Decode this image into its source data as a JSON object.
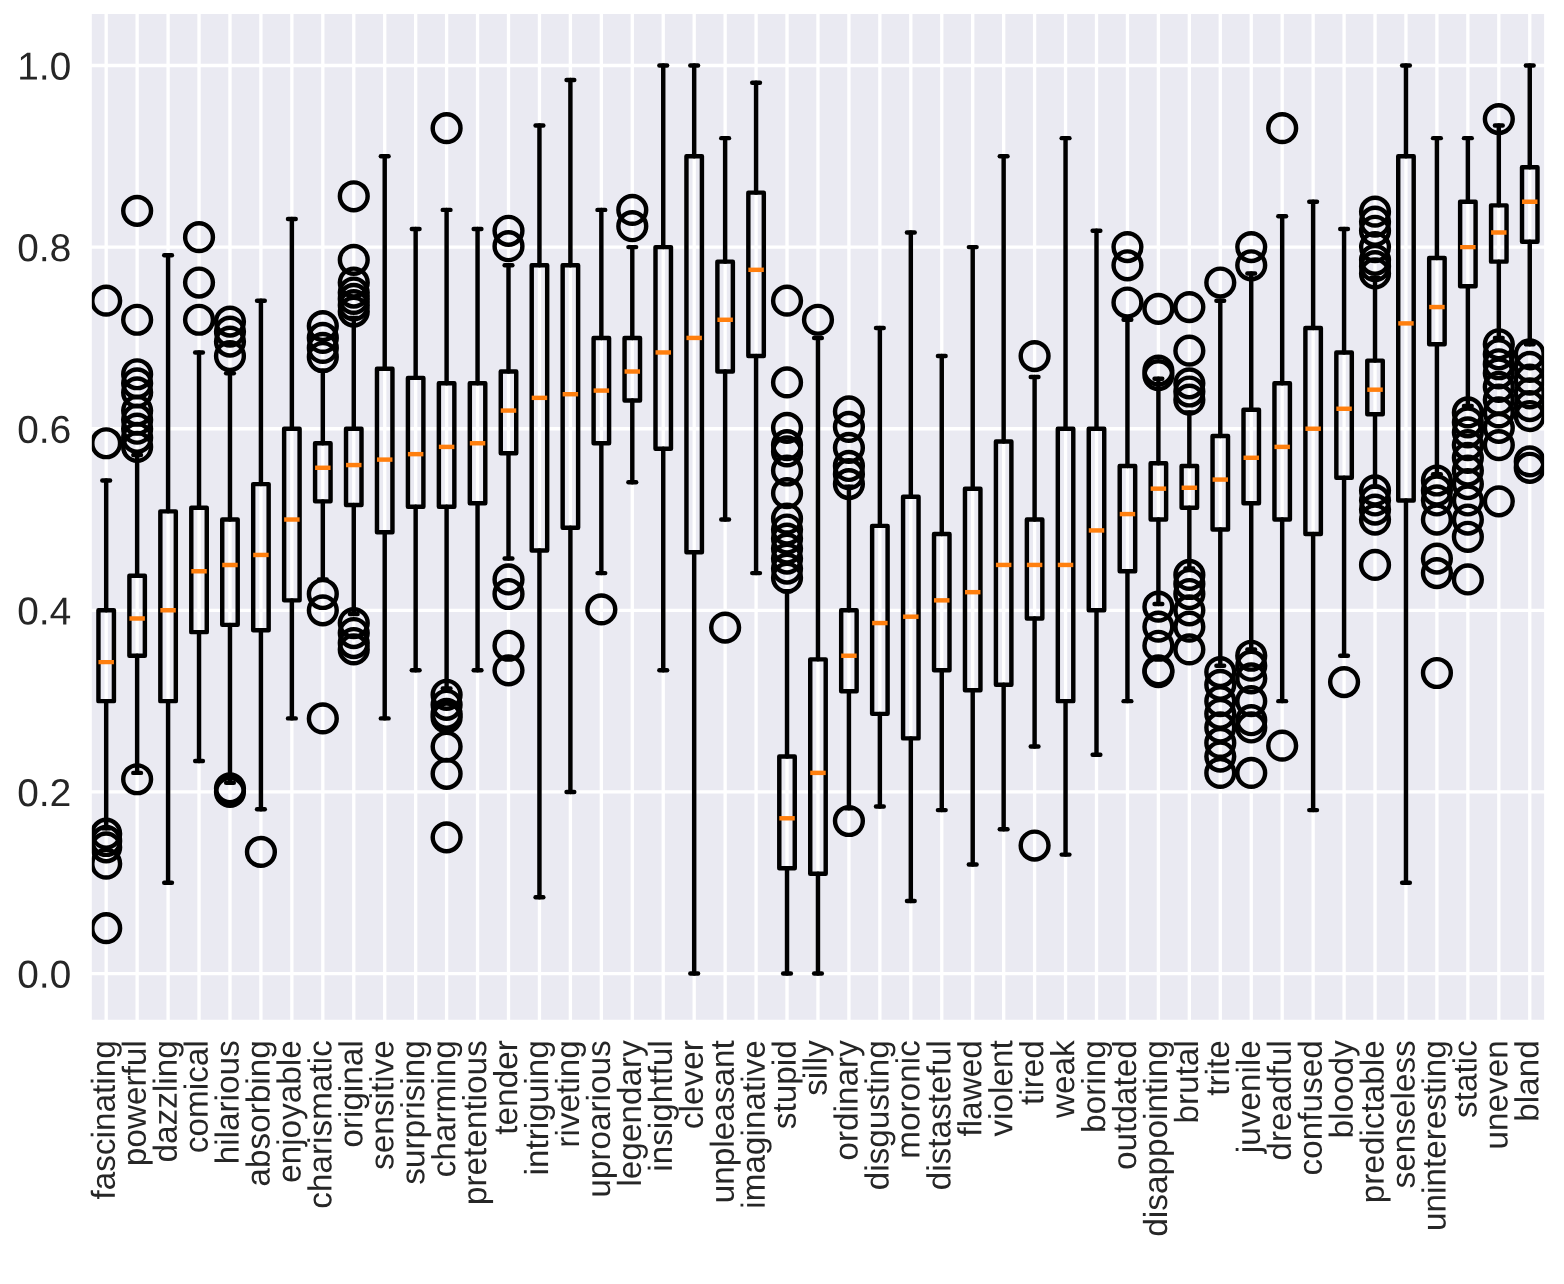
{
  "chart_data": {
    "type": "box",
    "categories": [
      "fascinating",
      "powerful",
      "dazzling",
      "comical",
      "hilarious",
      "absorbing",
      "enjoyable",
      "charismatic",
      "original",
      "sensitive",
      "surprising",
      "charming",
      "pretentious",
      "tender",
      "intriguing",
      "riveting",
      "uproarious",
      "legendary",
      "insightful",
      "clever",
      "unpleasant",
      "imaginative",
      "stupid",
      "silly",
      "ordinary",
      "disgusting",
      "moronic",
      "distasteful",
      "flawed",
      "violent",
      "tired",
      "weak",
      "boring",
      "outdated",
      "disappointing",
      "brutal",
      "trite",
      "juvenile",
      "dreadful",
      "confused",
      "bloody",
      "predictable",
      "senseless",
      "uninteresting",
      "static",
      "uneven",
      "bland"
    ],
    "boxes": [
      {
        "low": 0.16,
        "q1": 0.3,
        "median": 0.343,
        "q3": 0.4,
        "high": 0.543,
        "outliers": [
          0.154,
          0.146,
          0.139,
          0.121,
          0.05,
          0.584,
          0.741
        ]
      },
      {
        "low": 0.221,
        "q1": 0.35,
        "median": 0.391,
        "q3": 0.438,
        "high": 0.571,
        "outliers": [
          0.214,
          0.58,
          0.59,
          0.6,
          0.61,
          0.62,
          0.64,
          0.65,
          0.66,
          0.72,
          0.84
        ]
      },
      {
        "low": 0.1,
        "q1": 0.3,
        "median": 0.4,
        "q3": 0.509,
        "high": 0.791
      },
      {
        "low": 0.234,
        "q1": 0.376,
        "median": 0.443,
        "q3": 0.513,
        "high": 0.684,
        "outliers": [
          0.72,
          0.761,
          0.811
        ]
      },
      {
        "low": 0.21,
        "q1": 0.384,
        "median": 0.45,
        "q3": 0.5,
        "high": 0.661,
        "outliers": [
          0.204,
          0.2,
          0.68,
          0.696,
          0.707,
          0.718
        ]
      },
      {
        "low": 0.181,
        "q1": 0.378,
        "median": 0.461,
        "q3": 0.539,
        "high": 0.741,
        "outliers": [
          0.134
        ]
      },
      {
        "low": 0.281,
        "q1": 0.411,
        "median": 0.5,
        "q3": 0.6,
        "high": 0.831
      },
      {
        "low": 0.434,
        "q1": 0.52,
        "median": 0.557,
        "q3": 0.584,
        "high": 0.664,
        "outliers": [
          0.679,
          0.689,
          0.7,
          0.713,
          0.418,
          0.4,
          0.281
        ]
      },
      {
        "low": 0.396,
        "q1": 0.516,
        "median": 0.56,
        "q3": 0.6,
        "high": 0.722,
        "outliers": [
          0.729,
          0.736,
          0.743,
          0.75,
          0.761,
          0.786,
          0.856,
          0.386,
          0.375,
          0.364,
          0.357
        ]
      },
      {
        "low": 0.281,
        "q1": 0.486,
        "median": 0.566,
        "q3": 0.666,
        "high": 0.9
      },
      {
        "low": 0.334,
        "q1": 0.514,
        "median": 0.572,
        "q3": 0.656,
        "high": 0.82
      },
      {
        "low": 0.314,
        "q1": 0.514,
        "median": 0.58,
        "q3": 0.65,
        "high": 0.841,
        "outliers": [
          0.307,
          0.296,
          0.286,
          0.282,
          0.25,
          0.22,
          0.15,
          0.931
        ]
      },
      {
        "low": 0.334,
        "q1": 0.518,
        "median": 0.584,
        "q3": 0.65,
        "high": 0.82
      },
      {
        "low": 0.457,
        "q1": 0.573,
        "median": 0.62,
        "q3": 0.663,
        "high": 0.78,
        "outliers": [
          0.801,
          0.818,
          0.434,
          0.418,
          0.361,
          0.334
        ]
      },
      {
        "low": 0.084,
        "q1": 0.466,
        "median": 0.634,
        "q3": 0.78,
        "high": 0.934
      },
      {
        "low": 0.2,
        "q1": 0.491,
        "median": 0.638,
        "q3": 0.78,
        "high": 0.984
      },
      {
        "low": 0.441,
        "q1": 0.584,
        "median": 0.642,
        "q3": 0.7,
        "high": 0.841,
        "outliers": [
          0.401
        ]
      },
      {
        "low": 0.541,
        "q1": 0.631,
        "median": 0.663,
        "q3": 0.7,
        "high": 0.8,
        "outliers": [
          0.823,
          0.841
        ]
      },
      {
        "low": 0.334,
        "q1": 0.578,
        "median": 0.684,
        "q3": 0.8,
        "high": 1.0
      },
      {
        "low": 0.0,
        "q1": 0.464,
        "median": 0.7,
        "q3": 0.9,
        "high": 1.0
      },
      {
        "low": 0.5,
        "q1": 0.663,
        "median": 0.72,
        "q3": 0.784,
        "high": 0.92,
        "outliers": [
          0.381
        ]
      },
      {
        "low": 0.441,
        "q1": 0.68,
        "median": 0.775,
        "q3": 0.86,
        "high": 0.981
      },
      {
        "low": 0.0,
        "q1": 0.116,
        "median": 0.171,
        "q3": 0.239,
        "high": 0.421,
        "outliers": [
          0.436,
          0.446,
          0.457,
          0.468,
          0.479,
          0.489,
          0.501,
          0.529,
          0.554,
          0.575,
          0.582,
          0.601,
          0.651,
          0.741
        ]
      },
      {
        "low": 0.0,
        "q1": 0.11,
        "median": 0.221,
        "q3": 0.346,
        "high": 0.7,
        "outliers": [
          0.72
        ]
      },
      {
        "low": 0.182,
        "q1": 0.311,
        "median": 0.35,
        "q3": 0.4,
        "high": 0.536,
        "outliers": [
          0.168,
          0.539,
          0.55,
          0.559,
          0.579,
          0.602,
          0.619
        ]
      },
      {
        "low": 0.184,
        "q1": 0.286,
        "median": 0.386,
        "q3": 0.493,
        "high": 0.711
      },
      {
        "low": 0.08,
        "q1": 0.259,
        "median": 0.393,
        "q3": 0.525,
        "high": 0.816
      },
      {
        "low": 0.18,
        "q1": 0.334,
        "median": 0.411,
        "q3": 0.484,
        "high": 0.68
      },
      {
        "low": 0.12,
        "q1": 0.312,
        "median": 0.42,
        "q3": 0.534,
        "high": 0.8
      },
      {
        "low": 0.159,
        "q1": 0.318,
        "median": 0.45,
        "q3": 0.586,
        "high": 0.9
      },
      {
        "low": 0.25,
        "q1": 0.391,
        "median": 0.45,
        "q3": 0.5,
        "high": 0.657,
        "outliers": [
          0.68,
          0.141
        ]
      },
      {
        "low": 0.131,
        "q1": 0.3,
        "median": 0.45,
        "q3": 0.6,
        "high": 0.92
      },
      {
        "low": 0.241,
        "q1": 0.4,
        "median": 0.488,
        "q3": 0.6,
        "high": 0.818
      },
      {
        "low": 0.3,
        "q1": 0.443,
        "median": 0.506,
        "q3": 0.559,
        "high": 0.72,
        "outliers": [
          0.739,
          0.78,
          0.8
        ]
      },
      {
        "low": 0.407,
        "q1": 0.5,
        "median": 0.534,
        "q3": 0.562,
        "high": 0.655,
        "outliers": [
          0.659,
          0.664,
          0.732,
          0.404,
          0.382,
          0.361,
          0.334,
          0.332
        ]
      },
      {
        "low": 0.446,
        "q1": 0.513,
        "median": 0.535,
        "q3": 0.559,
        "high": 0.618,
        "outliers": [
          0.632,
          0.641,
          0.65,
          0.686,
          0.734,
          0.439,
          0.429,
          0.418,
          0.4,
          0.382,
          0.357
        ]
      },
      {
        "low": 0.339,
        "q1": 0.489,
        "median": 0.544,
        "q3": 0.592,
        "high": 0.741,
        "outliers": [
          0.332,
          0.318,
          0.3,
          0.286,
          0.271,
          0.254,
          0.239,
          0.221,
          0.761
        ]
      },
      {
        "low": 0.357,
        "q1": 0.518,
        "median": 0.568,
        "q3": 0.621,
        "high": 0.771,
        "outliers": [
          0.35,
          0.339,
          0.325,
          0.3,
          0.279,
          0.271,
          0.221,
          0.78,
          0.8
        ]
      },
      {
        "low": 0.3,
        "q1": 0.5,
        "median": 0.58,
        "q3": 0.65,
        "high": 0.834,
        "outliers": [
          0.251,
          0.931
        ]
      },
      {
        "low": 0.18,
        "q1": 0.484,
        "median": 0.6,
        "q3": 0.711,
        "high": 0.85
      },
      {
        "low": 0.35,
        "q1": 0.546,
        "median": 0.622,
        "q3": 0.684,
        "high": 0.82,
        "outliers": [
          0.321
        ]
      },
      {
        "low": 0.536,
        "q1": 0.616,
        "median": 0.643,
        "q3": 0.675,
        "high": 0.766,
        "outliers": [
          0.839,
          0.828,
          0.818,
          0.8,
          0.786,
          0.779,
          0.771,
          0.532,
          0.521,
          0.511,
          0.5,
          0.45
        ]
      },
      {
        "low": 0.1,
        "q1": 0.521,
        "median": 0.716,
        "q3": 0.9,
        "high": 1.0
      },
      {
        "low": 0.55,
        "q1": 0.693,
        "median": 0.734,
        "q3": 0.788,
        "high": 0.92,
        "outliers": [
          0.543,
          0.532,
          0.521,
          0.5,
          0.457,
          0.441,
          0.331
        ]
      },
      {
        "low": 0.625,
        "q1": 0.757,
        "median": 0.8,
        "q3": 0.85,
        "high": 0.92,
        "outliers": [
          0.618,
          0.607,
          0.596,
          0.582,
          0.568,
          0.554,
          0.539,
          0.521,
          0.5,
          0.481,
          0.434
        ]
      },
      {
        "low": 0.7,
        "q1": 0.784,
        "median": 0.816,
        "q3": 0.846,
        "high": 0.934,
        "outliers": [
          0.693,
          0.682,
          0.671,
          0.661,
          0.646,
          0.632,
          0.618,
          0.601,
          0.582,
          0.52,
          0.941
        ]
      },
      {
        "low": 0.693,
        "q1": 0.806,
        "median": 0.85,
        "q3": 0.888,
        "high": 1.0,
        "outliers": [
          0.682,
          0.668,
          0.654,
          0.639,
          0.625,
          0.614,
          0.564,
          0.557
        ]
      }
    ],
    "ylim": [
      -0.052,
      1.058
    ],
    "yticks": [
      {
        "value": 0,
        "label": "0.0"
      },
      0.2,
      0.4,
      0.6,
      0.8,
      {
        "value": 1,
        "label": "1.0"
      }
    ],
    "grid": true
  }
}
